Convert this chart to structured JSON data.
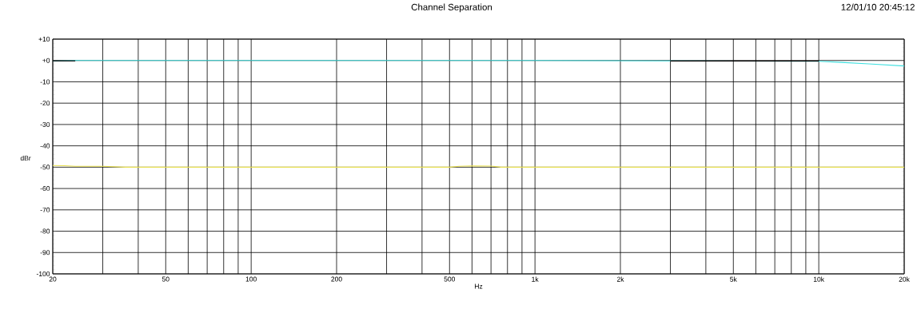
{
  "chart_data": {
    "type": "line",
    "title": "Channel Separation",
    "annotations": [
      "12/01/10 20:45:12"
    ],
    "xlabel": "Hz",
    "ylabel": "dBr",
    "log": "x",
    "grid": true,
    "xlim": [
      20,
      20000
    ],
    "ylim": [
      -100,
      10
    ],
    "xticks": [
      20,
      {
        "value": 30,
        "label": null
      },
      {
        "value": 40,
        "label": null
      },
      50,
      {
        "value": 60,
        "label": null
      },
      {
        "value": 70,
        "label": null
      },
      {
        "value": 80,
        "label": null
      },
      {
        "value": 90,
        "label": null
      },
      100,
      200,
      {
        "value": 300,
        "label": null
      },
      {
        "value": 400,
        "label": null
      },
      500,
      {
        "value": 600,
        "label": null
      },
      {
        "value": 700,
        "label": null
      },
      {
        "value": 800,
        "label": null
      },
      {
        "value": 900,
        "label": null
      },
      {
        "value": 1000,
        "label": "1k"
      },
      {
        "value": 2000,
        "label": "2k"
      },
      {
        "value": 3000,
        "label": null
      },
      {
        "value": 4000,
        "label": null
      },
      {
        "value": 5000,
        "label": "5k"
      },
      {
        "value": 6000,
        "label": null
      },
      {
        "value": 7000,
        "label": null
      },
      {
        "value": 8000,
        "label": null
      },
      {
        "value": 9000,
        "label": null
      },
      {
        "value": 10000,
        "label": "10k"
      },
      {
        "value": 20000,
        "label": "20k"
      }
    ],
    "yticks": [
      {
        "value": 10,
        "label": "+10"
      },
      {
        "value": 0,
        "label": "+0"
      },
      -10,
      -20,
      -30,
      -40,
      -50,
      -60,
      -70,
      -80,
      -90,
      -100
    ],
    "series": [
      {
        "color": "#40e0e0",
        "x": [
          20,
          24,
          100,
          1000,
          3000,
          10000,
          12000,
          15000,
          20000
        ],
        "values": [
          -0.3,
          0,
          0,
          0,
          -0.2,
          -0.4,
          -0.9,
          -1.6,
          -2.6
        ]
      },
      {
        "color": "#000000",
        "x": [
          20,
          24
        ],
        "values": [
          -0.2,
          -0.2
        ]
      },
      {
        "color": "#000000",
        "x": [
          3000,
          10000
        ],
        "values": [
          -0.3,
          -0.3
        ]
      },
      {
        "color": "#e8e050",
        "x": [
          20,
          22,
          24,
          30,
          36,
          100,
          500,
          540,
          600,
          700,
          760,
          1000,
          20000
        ],
        "values": [
          -49.2,
          -49.3,
          -49.6,
          -49.6,
          -50,
          -50,
          -50,
          -49.6,
          -49.4,
          -49.5,
          -50,
          -50,
          -50
        ]
      }
    ]
  }
}
